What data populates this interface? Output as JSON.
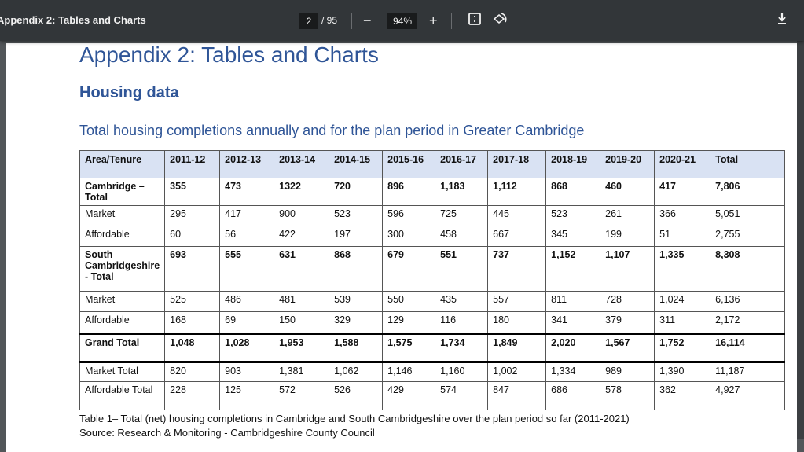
{
  "viewer": {
    "title": "Appendix 2: Tables and Charts",
    "current_page": "2",
    "total_pages": "/ 95",
    "zoom": "94%",
    "zoom_out": "−",
    "zoom_in": "+",
    "fit_icon": "fit-page-icon",
    "rotate_icon": "rotate-icon",
    "download_icon": "download-icon"
  },
  "document": {
    "title": "Appendix 2: Tables and Charts",
    "section": "Housing data",
    "table_title": "Total housing completions annually and for the plan period in Greater Cambridge",
    "table": {
      "headers": [
        "Area/Tenure",
        "2011-12",
        "2012-13",
        "2013-14",
        "2014-15",
        "2015-16",
        "2016-17",
        "2017-18",
        "2018-19",
        "2019-20",
        "2020-21",
        "Total"
      ],
      "rows": [
        [
          "Cambridge – Total",
          "355",
          "473",
          "1322",
          "720",
          "896",
          "1,183",
          "1,112",
          "868",
          "460",
          "417",
          "7,806"
        ],
        [
          "Market",
          "295",
          "417",
          "900",
          "523",
          "596",
          "725",
          "445",
          "523",
          "261",
          "366",
          "5,051"
        ],
        [
          "Affordable",
          "60",
          "56",
          "422",
          "197",
          "300",
          "458",
          "667",
          "345",
          "199",
          "51",
          "2,755"
        ],
        [
          "South Cambridgeshire - Total",
          "693",
          "555",
          "631",
          "868",
          "679",
          "551",
          "737",
          "1,152",
          "1,107",
          "1,335",
          "8,308"
        ],
        [
          "Market",
          "525",
          "486",
          "481",
          "539",
          "550",
          "435",
          "557",
          "811",
          "728",
          "1,024",
          "6,136"
        ],
        [
          "Affordable",
          "168",
          "69",
          "150",
          "329",
          "129",
          "116",
          "180",
          "341",
          "379",
          "311",
          "2,172"
        ],
        [
          "Grand Total",
          "1,048",
          "1,028",
          "1,953",
          "1,588",
          "1,575",
          "1,734",
          "1,849",
          "2,020",
          "1,567",
          "1,752",
          "16,114"
        ],
        [
          "Market Total",
          "820",
          "903",
          "1,381",
          "1,062",
          "1,146",
          "1,160",
          "1,002",
          "1,334",
          "989",
          "1,390",
          "11,187"
        ],
        [
          "Affordable Total",
          "228",
          "125",
          "572",
          "526",
          "429",
          "574",
          "847",
          "686",
          "578",
          "362",
          "4,927"
        ]
      ]
    },
    "caption": "Table 1– Total (net) housing completions in Cambridge and South Cambridgeshire over the plan period so far (2011-2021)",
    "source": "Source: Research & Monitoring - Cambridgeshire County Council"
  }
}
